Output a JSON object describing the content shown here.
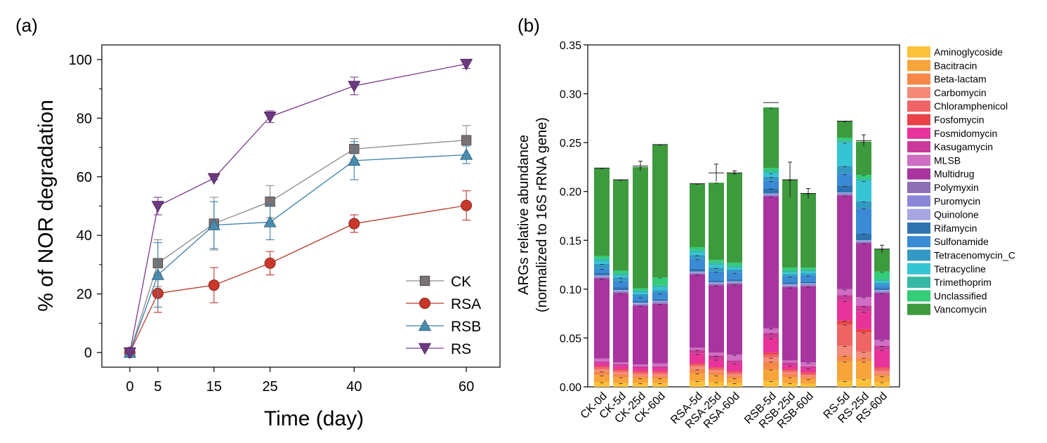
{
  "chart_data": [
    {
      "type": "line",
      "panel_label": "(a)",
      "xlabel": "Time (day)",
      "ylabel": "% of NOR degradation",
      "x": [
        0,
        5,
        15,
        25,
        40,
        60
      ],
      "xlim": [
        -5,
        66
      ],
      "ylim": [
        -5,
        105
      ],
      "xticks": [
        0,
        5,
        15,
        25,
        40,
        60
      ],
      "yticks": [
        0,
        20,
        40,
        60,
        80,
        100
      ],
      "legend_position": "bottom-right",
      "grid": false,
      "series": [
        {
          "name": "CK",
          "color": "#7a7273",
          "line_color": "#8a8a8a",
          "marker": "square",
          "values": [
            0,
            30.5,
            44,
            51.5,
            69.5,
            72.5
          ],
          "errors": [
            0.5,
            8,
            9,
            5.5,
            3.5,
            5
          ]
        },
        {
          "name": "RSA",
          "color": "#c9372b",
          "line_color": "#b83a2e",
          "marker": "circle",
          "values": [
            0,
            20.2,
            23,
            30.5,
            44,
            50.2
          ],
          "errors": [
            0.5,
            6.5,
            6,
            4,
            3,
            5
          ]
        },
        {
          "name": "RSB",
          "color": "#4a8cad",
          "line_color": "#3d7fa8",
          "marker": "triangle-up",
          "values": [
            0,
            26.5,
            43.5,
            44.5,
            65.5,
            67.5
          ],
          "errors": [
            0.5,
            11,
            8,
            6,
            6.5,
            3
          ]
        },
        {
          "name": "RS",
          "color": "#6d3a7f",
          "line_color": "#7a3b8a",
          "marker": "triangle-down",
          "values": [
            0,
            50,
            59.5,
            80.5,
            91,
            98.5
          ],
          "errors": [
            0.5,
            3,
            0.5,
            2,
            3,
            1.5
          ]
        }
      ]
    },
    {
      "type": "bar",
      "stacked": true,
      "panel_label": "(b)",
      "ylabel_line1": "ARGs relative abundance",
      "ylabel_line2": "(normalized to 16S rRNA gene)",
      "ylim": [
        0,
        0.35
      ],
      "yticks": [
        "0.00",
        "0.05",
        "0.10",
        "0.15",
        "0.20",
        "0.25",
        "0.30",
        "0.35"
      ],
      "legend_position": "right",
      "categories": [
        "CK-0d",
        "CK-5d",
        "CK-25d",
        "CK-60d",
        "RSA-5d",
        "RSA-25d",
        "RSA-60d",
        "RSB-5d",
        "RSB-25d",
        "RSB-60d",
        "RS-5d",
        "RS-25d",
        "RS-60d"
      ],
      "totals": [
        0.224,
        0.212,
        0.226,
        0.248,
        0.208,
        0.219,
        0.219,
        0.291,
        0.212,
        0.198,
        0.272,
        0.252,
        0.141
      ],
      "total_errors": [
        0,
        0,
        0.005,
        0,
        0,
        0.009,
        0.002,
        0,
        0.018,
        0.005,
        0,
        0.006,
        0.004
      ],
      "series": [
        {
          "name": "Aminoglycoside",
          "color": "#fcc23b",
          "values": [
            0.005,
            0.004,
            0.004,
            0.004,
            0.006,
            0.005,
            0.004,
            0.006,
            0.004,
            0.003,
            0.006,
            0.008,
            0.005
          ]
        },
        {
          "name": "Bacitracin",
          "color": "#f7a43b",
          "values": [
            0.007,
            0.006,
            0.005,
            0.005,
            0.008,
            0.007,
            0.005,
            0.012,
            0.006,
            0.005,
            0.02,
            0.018,
            0.006
          ]
        },
        {
          "name": "Beta-lactam",
          "color": "#f58849",
          "values": [
            0.004,
            0.003,
            0.002,
            0.002,
            0.004,
            0.003,
            0.002,
            0.008,
            0.003,
            0.002,
            0.006,
            0.004,
            0.002
          ]
        },
        {
          "name": "Carbomycin",
          "color": "#f58a79",
          "values": [
            0.002,
            0.002,
            0.002,
            0.002,
            0.003,
            0.002,
            0.002,
            0.004,
            0.002,
            0.002,
            0.01,
            0.006,
            0.003
          ]
        },
        {
          "name": "Chloramphenicol",
          "color": "#ef6464",
          "values": [
            0.002,
            0.002,
            0.002,
            0.002,
            0.002,
            0.002,
            0.002,
            0.003,
            0.002,
            0.002,
            0.022,
            0.02,
            0.003
          ]
        },
        {
          "name": "Fosfomycin",
          "color": "#e84149",
          "values": [
            0.001,
            0.001,
            0.001,
            0.001,
            0.001,
            0.001,
            0.001,
            0.002,
            0.001,
            0.001,
            0.004,
            0.003,
            0.001
          ]
        },
        {
          "name": "Fosmidomycin",
          "color": "#e8339a",
          "values": [
            0.003,
            0.003,
            0.003,
            0.003,
            0.01,
            0.008,
            0.008,
            0.015,
            0.004,
            0.004,
            0.02,
            0.018,
            0.018
          ]
        },
        {
          "name": "Kasugamycin",
          "color": "#c93a98",
          "values": [
            0.002,
            0.002,
            0.002,
            0.002,
            0.004,
            0.004,
            0.003,
            0.005,
            0.003,
            0.002,
            0.006,
            0.006,
            0.004
          ]
        },
        {
          "name": "MLSB",
          "color": "#cf6ec4",
          "values": [
            0.003,
            0.002,
            0.002,
            0.003,
            0.002,
            0.003,
            0.006,
            0.005,
            0.002,
            0.004,
            0.006,
            0.009,
            0.006
          ]
        },
        {
          "name": "Multidrug",
          "color": "#a8359f",
          "values": [
            0.082,
            0.071,
            0.06,
            0.061,
            0.075,
            0.069,
            0.072,
            0.135,
            0.075,
            0.078,
            0.096,
            0.055,
            0.048
          ]
        },
        {
          "name": "Polymyxin",
          "color": "#8c6fb5",
          "values": [
            0.001,
            0.001,
            0.001,
            0.001,
            0.001,
            0.001,
            0.001,
            0.001,
            0.001,
            0.001,
            0.001,
            0.001,
            0.001
          ]
        },
        {
          "name": "Puromycin",
          "color": "#8c86d8",
          "values": [
            0.001,
            0.001,
            0.001,
            0.001,
            0.001,
            0.001,
            0.001,
            0.001,
            0.001,
            0.001,
            0.001,
            0.001,
            0.001
          ]
        },
        {
          "name": "Quinolone",
          "color": "#a6a6e0",
          "values": [
            0.001,
            0.001,
            0.001,
            0.001,
            0.001,
            0.001,
            0.001,
            0.001,
            0.001,
            0.001,
            0.001,
            0.001,
            0.001
          ]
        },
        {
          "name": "Rifamycin",
          "color": "#2e73b0",
          "values": [
            0.003,
            0.003,
            0.002,
            0.002,
            0.003,
            0.002,
            0.002,
            0.005,
            0.002,
            0.002,
            0.007,
            0.007,
            0.002
          ]
        },
        {
          "name": "Sulfonamide",
          "color": "#3a8ad6",
          "values": [
            0.004,
            0.006,
            0.004,
            0.006,
            0.01,
            0.009,
            0.007,
            0.008,
            0.006,
            0.006,
            0.012,
            0.026,
            0.003
          ]
        },
        {
          "name": "Tetracenomycin_C",
          "color": "#3399c4",
          "values": [
            0.005,
            0.004,
            0.003,
            0.003,
            0.004,
            0.004,
            0.003,
            0.004,
            0.002,
            0.002,
            0.008,
            0.007,
            0.002
          ]
        },
        {
          "name": "Tetracycline",
          "color": "#35c4d4",
          "values": [
            0.003,
            0.002,
            0.002,
            0.003,
            0.003,
            0.003,
            0.002,
            0.004,
            0.002,
            0.002,
            0.024,
            0.021,
            0.002
          ]
        },
        {
          "name": "Trimethoprim",
          "color": "#36b8a5",
          "values": [
            0.002,
            0.002,
            0.002,
            0.002,
            0.002,
            0.002,
            0.002,
            0.002,
            0.002,
            0.002,
            0.002,
            0.002,
            0.002
          ]
        },
        {
          "name": "Unclassified",
          "color": "#33cc79",
          "values": [
            0.003,
            0.003,
            0.002,
            0.008,
            0.003,
            0.003,
            0.003,
            0.003,
            0.003,
            0.002,
            0.003,
            0.004,
            0.008
          ]
        },
        {
          "name": "Vancomycin",
          "color": "#3d9a3d",
          "values": [
            0.09,
            0.093,
            0.124,
            0.136,
            0.065,
            0.079,
            0.092,
            0.062,
            0.09,
            0.076,
            0.017,
            0.034,
            0.023
          ]
        }
      ]
    }
  ]
}
